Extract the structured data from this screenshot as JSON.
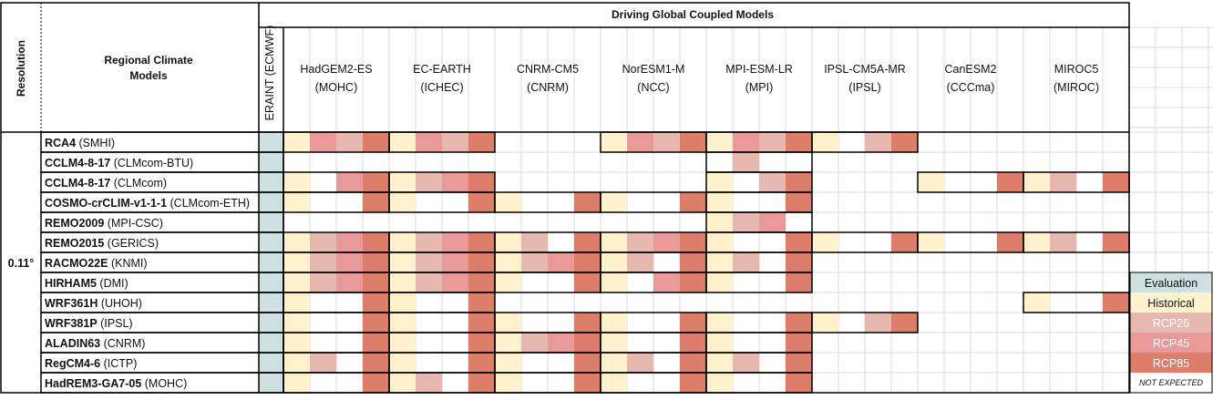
{
  "header": {
    "resolution_label": "Resolution",
    "rcm_label_line1": "Regional Climate",
    "rcm_label_line2": "Models",
    "driving_title": "Driving Global Coupled Models",
    "erain_label": "ERAINT (ECMWF)"
  },
  "resolution_value": "0.11°",
  "gcms": [
    {
      "name": "HadGEM2-ES",
      "inst": "(MOHC)"
    },
    {
      "name": "EC-EARTH",
      "inst": "(ICHEC)"
    },
    {
      "name": "CNRM-CM5",
      "inst": "(CNRM)"
    },
    {
      "name": "NorESM1-M",
      "inst": "(NCC)"
    },
    {
      "name": "MPI-ESM-LR",
      "inst": "(MPI)"
    },
    {
      "name": "IPSL-CM5A-MR",
      "inst": "(IPSL)"
    },
    {
      "name": "CanESM2",
      "inst": "(CCCma)"
    },
    {
      "name": "MIROC5",
      "inst": "(MIROC)"
    }
  ],
  "rcms": [
    {
      "name": "RCA4",
      "inst": "(SMHI)",
      "cells": [
        "HRrR",
        "HRrR",
        "",
        "HRrR",
        "HRrR",
        "H-rR",
        "",
        ""
      ]
    },
    {
      "name": "CCLM4-8-17",
      "inst": "(CLMcom-BTU)",
      "cells": [
        "",
        "",
        "",
        "",
        "-r--",
        "",
        "",
        ""
      ]
    },
    {
      "name": "CCLM4-8-17",
      "inst": "(CLMcom)",
      "cells": [
        "H-RR",
        "HrRR",
        "",
        "",
        "H-rR",
        "",
        "H--R",
        "Hr-R"
      ]
    },
    {
      "name": "COSMO-crCLIM-v1-1-1",
      "inst": "(CLMcom-ETH)",
      "cells": [
        "H--R",
        "H--R",
        "H--R",
        "H--R",
        "H--R",
        "",
        "",
        ""
      ]
    },
    {
      "name": "REMO2009",
      "inst": "(MPI-CSC)",
      "cells": [
        "",
        "",
        "",
        "",
        "HrR-",
        "",
        "",
        ""
      ]
    },
    {
      "name": "REMO2015",
      "inst": "(GERICS)",
      "cells": [
        "HrRR",
        "HrRR",
        "Hr-R",
        "HrRR",
        "H--R",
        "H--R",
        "H--R",
        "Hr-R"
      ]
    },
    {
      "name": "RACMO22E",
      "inst": "(KNMI)",
      "cells": [
        "HrRR",
        "HrRR",
        "HrRR",
        "Hr-R",
        "Hr-R",
        "",
        "",
        ""
      ]
    },
    {
      "name": "HIRHAM5",
      "inst": "(DMI)",
      "cells": [
        "HrRR",
        "HrRR",
        "H--R",
        "H-RR",
        "H--R",
        "",
        "",
        ""
      ]
    },
    {
      "name": "WRF361H",
      "inst": "(UHOH)",
      "cells": [
        "H--R",
        "H--R",
        "",
        "",
        "",
        "",
        "",
        "H--R"
      ]
    },
    {
      "name": "WRF381P",
      "inst": "(IPSL)",
      "cells": [
        "H--R",
        "H--R",
        "H--R",
        "H--R",
        "H--R",
        "H-rR",
        "",
        ""
      ]
    },
    {
      "name": "ALADIN63",
      "inst": "(CNRM)",
      "cells": [
        "H--R",
        "H--R",
        "HrRR",
        "H--R",
        "H--R",
        "",
        "",
        ""
      ]
    },
    {
      "name": "RegCM4-6",
      "inst": "(ICTP)",
      "cells": [
        "Hr-R",
        "H--R",
        "H--R",
        "Hr-R",
        "Hr-R",
        "",
        "",
        ""
      ]
    },
    {
      "name": "HadREM3-GA7-05",
      "inst": "(MOHC)",
      "cells": [
        "H--R",
        "Hr-R",
        "H--R",
        "H--R",
        "H--R",
        "",
        "",
        ""
      ]
    }
  ],
  "cell_code_legend": "H = Historical, r = RCP26, R(3rd) = RCP45, R(4th) = RCP85, - = none",
  "colors": {
    "evaluation": "#cde0e2",
    "historical": "#fff2cc",
    "rcp26": "#e6b8af",
    "rcp45": "#ea9999",
    "rcp85": "#dd7e6b",
    "border": "#000000",
    "grid": "#d9d9d9"
  },
  "legend": {
    "evaluation": "Evaluation",
    "historical": "Historical",
    "rcp26": "RCP26",
    "rcp45": "RCP45",
    "rcp85": "RCP85",
    "not_expected": "NOT EXPECTED"
  }
}
